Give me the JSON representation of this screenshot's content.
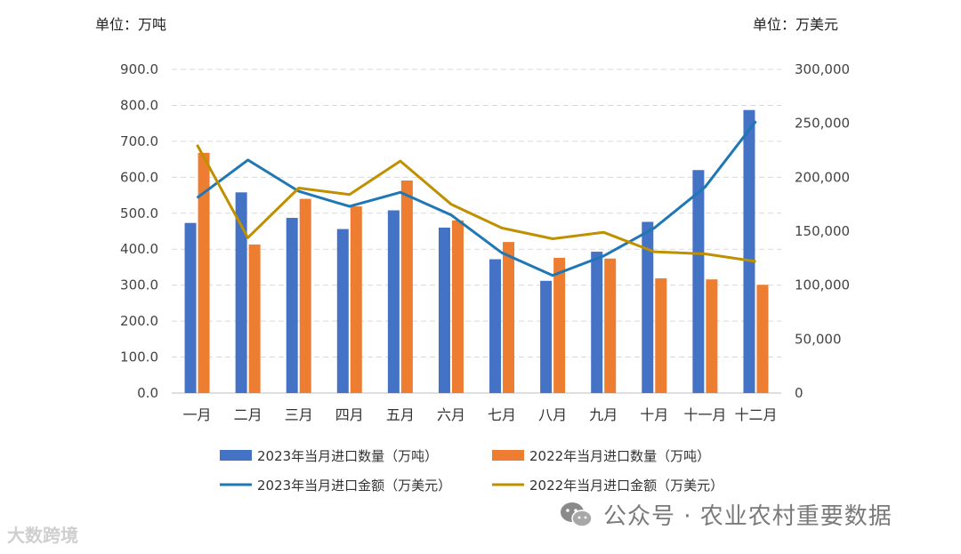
{
  "units": {
    "left": "单位：万吨",
    "right": "单位：万美元"
  },
  "watermark": {
    "text": "公众号 · 农业农村重要数据",
    "source": "大数跨境",
    "icon": "wechat-icon"
  },
  "colors": {
    "bar2023": "#4472C4",
    "bar2022": "#ED7D31",
    "line2023": "#1F77B4",
    "line2022": "#BF9000",
    "grid": "#D9D9D9"
  },
  "chart_data": {
    "type": "bar",
    "categories": [
      "一月",
      "二月",
      "三月",
      "四月",
      "五月",
      "六月",
      "七月",
      "八月",
      "九月",
      "十月",
      "十一月",
      "十二月"
    ],
    "y_left": {
      "ylim": [
        0,
        900
      ],
      "ticks": [
        "0.0",
        "100.0",
        "200.0",
        "300.0",
        "400.0",
        "500.0",
        "600.0",
        "700.0",
        "800.0",
        "900.0"
      ]
    },
    "y_right": {
      "ylim": [
        0,
        300000
      ],
      "ticks": [
        "0",
        "50,000",
        "100,000",
        "150,000",
        "200,000",
        "250,000",
        "300,000"
      ]
    },
    "series": [
      {
        "name": "2023年当月进口数量（万吨）",
        "type": "bar",
        "axis": "left",
        "values": [
          473,
          558,
          487,
          456,
          508,
          460,
          372,
          312,
          393,
          476,
          620,
          787
        ]
      },
      {
        "name": "2022年当月进口数量（万吨）",
        "type": "bar",
        "axis": "left",
        "values": [
          668,
          413,
          540,
          519,
          591,
          480,
          420,
          376,
          374,
          319,
          316,
          301
        ]
      },
      {
        "name": "2023年当月进口金额（万美元）",
        "type": "line",
        "axis": "right",
        "values": [
          181000,
          216000,
          187000,
          173000,
          186000,
          165000,
          130000,
          109000,
          127000,
          153000,
          191000,
          252000
        ]
      },
      {
        "name": "2022年当月进口金额（万美元）",
        "type": "line",
        "axis": "right",
        "values": [
          230000,
          144000,
          190000,
          184000,
          215000,
          175000,
          153000,
          143000,
          149000,
          131000,
          129000,
          122000
        ]
      }
    ],
    "grid": true,
    "legend_position": "bottom"
  }
}
